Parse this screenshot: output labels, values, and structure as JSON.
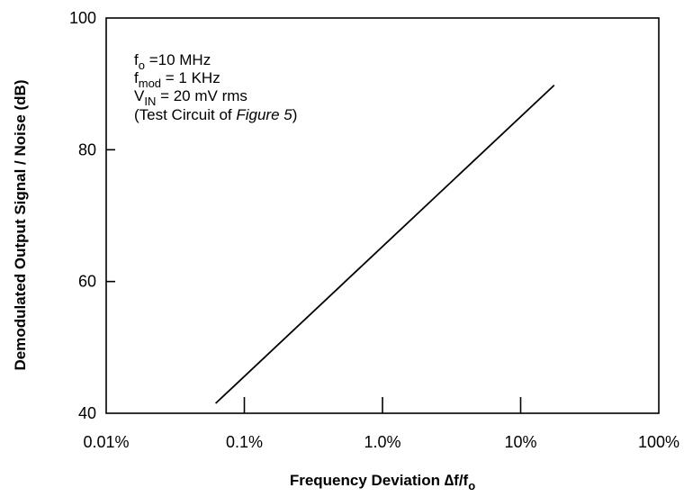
{
  "chart_data": {
    "type": "line",
    "title": "",
    "xlabel": "Frequency Deviation ∆f/fo",
    "ylabel": "Demodulated Output Signal / Noise (dB)",
    "x_scale": "log",
    "xlim": [
      0.01,
      100
    ],
    "ylim": [
      40,
      100
    ],
    "x_ticks": [
      0.01,
      0.1,
      1.0,
      10,
      100
    ],
    "x_tick_labels": [
      "0.01%",
      "0.1%",
      "1.0%",
      "10%",
      "100%"
    ],
    "y_ticks": [
      40,
      60,
      80,
      100
    ],
    "y_tick_labels": [
      "40",
      "60",
      "80",
      "100"
    ],
    "grid": false,
    "series": [
      {
        "x": [
          0.062,
          17.5
        ],
        "y": [
          41.5,
          89.8
        ]
      }
    ],
    "annotations": {
      "fo_label": "f",
      "fo_sub": "o",
      "fo_value": " =10 MHz",
      "fmod_label": "f",
      "fmod_sub": "mod",
      "fmod_value": " = 1 KHz",
      "vin_label": "V",
      "vin_sub": "IN",
      "vin_value": " = 20 mV rms",
      "test_prefix": "(Test Circuit of ",
      "test_italic": "Figure 5",
      "test_suffix": ")"
    },
    "xlabel_main": "Frequency Deviation ∆f/f",
    "xlabel_sub": "o"
  }
}
